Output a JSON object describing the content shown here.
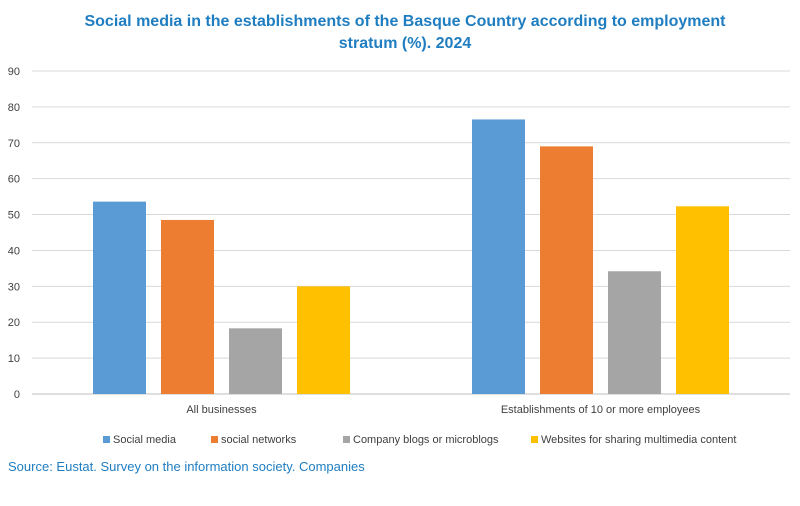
{
  "chart_data": {
    "type": "bar",
    "title_lines": [
      "Social media in the establishments of the Basque Country according to employment",
      "stratum (%). 2024"
    ],
    "categories": [
      "All businesses",
      "Establishments of 10 or more employees"
    ],
    "series": [
      {
        "name": "Social media",
        "color": "#5b9bd5",
        "values": [
          53.6,
          76.5
        ]
      },
      {
        "name": "social networks",
        "color": "#ed7d31",
        "values": [
          48.5,
          69.0
        ]
      },
      {
        "name": "Company blogs or microblogs",
        "color": "#a5a5a5",
        "values": [
          18.3,
          34.2
        ]
      },
      {
        "name": "Websites for sharing multimedia content",
        "color": "#ffc000",
        "values": [
          30.0,
          52.3
        ]
      }
    ],
    "ylim": [
      0,
      90
    ],
    "yticks": [
      0,
      10,
      20,
      30,
      40,
      50,
      60,
      70,
      80,
      90
    ],
    "grid": true,
    "legend_position": "bottom",
    "source": "Source: Eustat. Survey on the information society. Companies"
  }
}
